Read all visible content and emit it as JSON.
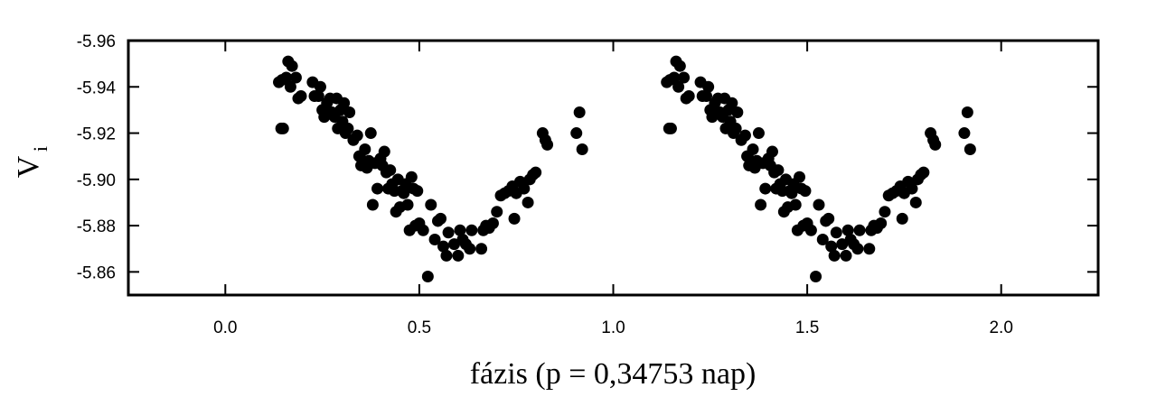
{
  "chart_data": {
    "type": "scatter",
    "title": "",
    "xlabel": "fázis   (p = 0,34753 nap)",
    "ylabel": {
      "main": "V",
      "sub": "i"
    },
    "xlim": [
      -0.25,
      2.25
    ],
    "ylim": [
      -5.85,
      -5.96
    ],
    "y_reversed": true,
    "grid": false,
    "legend": "none",
    "marker_color": "#000000",
    "x_ticks": [
      0.0,
      0.5,
      1.0,
      1.5,
      2.0
    ],
    "x_tick_labels": [
      "0.0",
      "0.5",
      "1.0",
      "1.5",
      "2.0"
    ],
    "y_ticks": [
      -5.96,
      -5.94,
      -5.92,
      -5.9,
      -5.88,
      -5.86
    ],
    "y_tick_labels": [
      "-5.96",
      "-5.94",
      "-5.92",
      "-5.90",
      "-5.88",
      "-5.86"
    ],
    "period_repeat": 1.0,
    "series": [
      {
        "points": [
          [
            0.138,
            -5.942
          ],
          [
            0.146,
            -5.943
          ],
          [
            0.144,
            -5.922
          ],
          [
            0.149,
            -5.922
          ],
          [
            0.157,
            -5.944
          ],
          [
            0.162,
            -5.951
          ],
          [
            0.168,
            -5.94
          ],
          [
            0.172,
            -5.949
          ],
          [
            0.182,
            -5.944
          ],
          [
            0.188,
            -5.935
          ],
          [
            0.195,
            -5.936
          ],
          [
            0.225,
            -5.942
          ],
          [
            0.23,
            -5.936
          ],
          [
            0.24,
            -5.936
          ],
          [
            0.245,
            -5.94
          ],
          [
            0.25,
            -5.93
          ],
          [
            0.255,
            -5.927
          ],
          [
            0.262,
            -5.933
          ],
          [
            0.27,
            -5.935
          ],
          [
            0.275,
            -5.929
          ],
          [
            0.282,
            -5.927
          ],
          [
            0.287,
            -5.935
          ],
          [
            0.29,
            -5.922
          ],
          [
            0.297,
            -5.93
          ],
          [
            0.302,
            -5.925
          ],
          [
            0.306,
            -5.933
          ],
          [
            0.31,
            -5.92
          ],
          [
            0.316,
            -5.922
          ],
          [
            0.32,
            -5.929
          ],
          [
            0.33,
            -5.917
          ],
          [
            0.34,
            -5.919
          ],
          [
            0.345,
            -5.91
          ],
          [
            0.35,
            -5.906
          ],
          [
            0.356,
            -5.908
          ],
          [
            0.36,
            -5.913
          ],
          [
            0.365,
            -5.905
          ],
          [
            0.37,
            -5.908
          ],
          [
            0.375,
            -5.92
          ],
          [
            0.38,
            -5.889
          ],
          [
            0.386,
            -5.907
          ],
          [
            0.392,
            -5.896
          ],
          [
            0.4,
            -5.909
          ],
          [
            0.405,
            -5.906
          ],
          [
            0.41,
            -5.912
          ],
          [
            0.415,
            -5.903
          ],
          [
            0.42,
            -5.896
          ],
          [
            0.425,
            -5.904
          ],
          [
            0.43,
            -5.898
          ],
          [
            0.436,
            -5.895
          ],
          [
            0.44,
            -5.886
          ],
          [
            0.445,
            -5.9
          ],
          [
            0.45,
            -5.888
          ],
          [
            0.455,
            -5.895
          ],
          [
            0.46,
            -5.894
          ],
          [
            0.465,
            -5.898
          ],
          [
            0.47,
            -5.889
          ],
          [
            0.475,
            -5.878
          ],
          [
            0.48,
            -5.901
          ],
          [
            0.485,
            -5.896
          ],
          [
            0.49,
            -5.88
          ],
          [
            0.495,
            -5.895
          ],
          [
            0.5,
            -5.881
          ],
          [
            0.51,
            -5.878
          ],
          [
            0.522,
            -5.858
          ],
          [
            0.53,
            -5.889
          ],
          [
            0.54,
            -5.874
          ],
          [
            0.548,
            -5.882
          ],
          [
            0.555,
            -5.883
          ],
          [
            0.562,
            -5.871
          ],
          [
            0.57,
            -5.867
          ],
          [
            0.575,
            -5.877
          ],
          [
            0.59,
            -5.872
          ],
          [
            0.6,
            -5.867
          ],
          [
            0.605,
            -5.878
          ],
          [
            0.612,
            -5.874
          ],
          [
            0.62,
            -5.872
          ],
          [
            0.63,
            -5.87
          ],
          [
            0.635,
            -5.878
          ],
          [
            0.66,
            -5.87
          ],
          [
            0.665,
            -5.878
          ],
          [
            0.672,
            -5.88
          ],
          [
            0.68,
            -5.879
          ],
          [
            0.69,
            -5.881
          ],
          [
            0.7,
            -5.886
          ],
          [
            0.71,
            -5.893
          ],
          [
            0.72,
            -5.894
          ],
          [
            0.73,
            -5.895
          ],
          [
            0.74,
            -5.897
          ],
          [
            0.745,
            -5.883
          ],
          [
            0.75,
            -5.894
          ],
          [
            0.76,
            -5.899
          ],
          [
            0.77,
            -5.896
          ],
          [
            0.78,
            -5.89
          ],
          [
            0.785,
            -5.9
          ],
          [
            0.793,
            -5.902
          ],
          [
            0.8,
            -5.903
          ],
          [
            0.818,
            -5.92
          ],
          [
            0.825,
            -5.917
          ],
          [
            0.83,
            -5.915
          ],
          [
            0.905,
            -5.92
          ],
          [
            0.913,
            -5.929
          ],
          [
            0.92,
            -5.913
          ]
        ]
      }
    ]
  }
}
